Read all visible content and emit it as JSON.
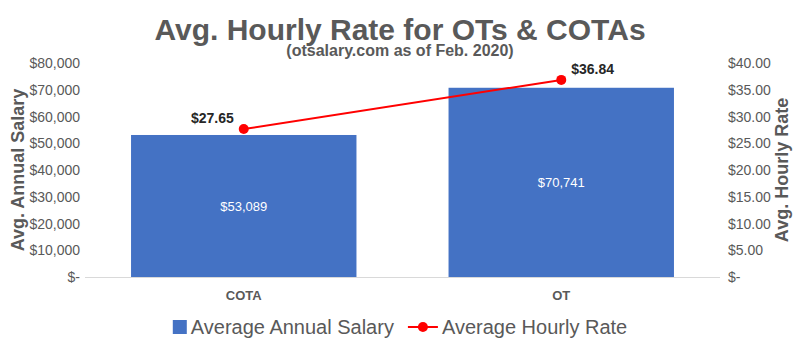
{
  "chart_data": {
    "type": "bar",
    "title": "Avg. Hourly Rate for OTs & COTAs",
    "subtitle": "(otsalary.com as of Feb. 2020)",
    "y_label": "Avg. Annual Salary",
    "y2_label": "Avg. Hourly Rate",
    "categories": [
      "COTA",
      "OT"
    ],
    "series": [
      {
        "name": "Average Annual Salary",
        "type": "bar",
        "color": "#4472c4",
        "values": [
          53089,
          70741
        ],
        "value_labels": [
          "$53,089",
          "$70,741"
        ]
      },
      {
        "name": "Average Hourly Rate",
        "type": "line",
        "color": "#ff0000",
        "marker": "circle",
        "axis": "y2",
        "values": [
          27.65,
          36.84
        ],
        "value_labels": [
          "$27.65",
          "$36.84"
        ]
      }
    ],
    "ylim": [
      0,
      80000
    ],
    "yticks": [
      {
        "value": 0,
        "label": "$-"
      },
      {
        "value": 10000,
        "label": "$10,000"
      },
      {
        "value": 20000,
        "label": "$20,000"
      },
      {
        "value": 30000,
        "label": "$30,000"
      },
      {
        "value": 40000,
        "label": "$40,000"
      },
      {
        "value": 50000,
        "label": "$50,000"
      },
      {
        "value": 60000,
        "label": "$60,000"
      },
      {
        "value": 70000,
        "label": "$70,000"
      },
      {
        "value": 80000,
        "label": "$80,000"
      }
    ],
    "y2lim": [
      0,
      40
    ],
    "y2ticks": [
      {
        "value": 0,
        "label": "$-"
      },
      {
        "value": 5,
        "label": "$5.00"
      },
      {
        "value": 10,
        "label": "$10.00"
      },
      {
        "value": 15,
        "label": "$15.00"
      },
      {
        "value": 20,
        "label": "$20.00"
      },
      {
        "value": 25,
        "label": "$25.00"
      },
      {
        "value": 30,
        "label": "$30.00"
      },
      {
        "value": 35,
        "label": "$35.00"
      },
      {
        "value": 40,
        "label": "$40.00"
      }
    ],
    "grid": false,
    "legend": "bottom",
    "data_labels": true
  }
}
